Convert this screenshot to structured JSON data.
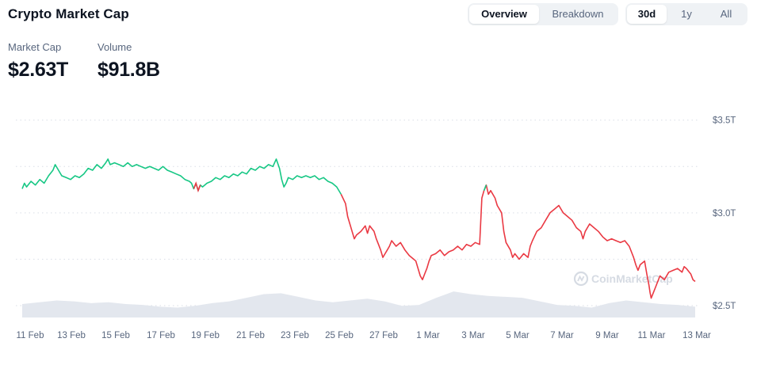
{
  "header": {
    "title": "Crypto Market Cap"
  },
  "view_toggle": {
    "options": [
      "Overview",
      "Breakdown"
    ],
    "active": 0
  },
  "range_toggle": {
    "options": [
      "30d",
      "1y",
      "All"
    ],
    "active": 0
  },
  "stats": {
    "market_cap": {
      "label": "Market Cap",
      "value": "$2.63T"
    },
    "volume": {
      "label": "Volume",
      "value": "$91.8B"
    }
  },
  "watermark": "CoinMarketCap",
  "colors": {
    "up": "#16c784",
    "down": "#ea3943",
    "volume": "#e3e7ee",
    "grid": "#d9dee6"
  },
  "chart_data": {
    "type": "line",
    "x_ticks": [
      "11 Feb",
      "13 Feb",
      "15 Feb",
      "17 Feb",
      "19 Feb",
      "21 Feb",
      "23 Feb",
      "25 Feb",
      "27 Feb",
      "1 Mar",
      "3 Mar",
      "5 Mar",
      "7 Mar",
      "9 Mar",
      "11 Mar",
      "13 Mar"
    ],
    "y_ticks": [
      "$3.5T",
      "$3.0T",
      "$2.5T"
    ],
    "y_tick_values": [
      3.5,
      3.0,
      2.5
    ],
    "ylim": [
      2.44,
      3.58
    ],
    "x_range_days": [
      0,
      30.6
    ],
    "unit": "trillion USD",
    "series": [
      {
        "values": [
          [
            0.0,
            3.13
          ],
          [
            0.1,
            3.16
          ],
          [
            0.2,
            3.14
          ],
          [
            0.4,
            3.17
          ],
          [
            0.6,
            3.15
          ],
          [
            0.8,
            3.18
          ],
          [
            1.0,
            3.16
          ],
          [
            1.2,
            3.2
          ],
          [
            1.4,
            3.23
          ],
          [
            1.5,
            3.26
          ],
          [
            1.6,
            3.24
          ],
          [
            1.8,
            3.2
          ],
          [
            2.0,
            3.19
          ],
          [
            2.2,
            3.18
          ],
          [
            2.4,
            3.2
          ],
          [
            2.6,
            3.19
          ],
          [
            2.8,
            3.21
          ],
          [
            3.0,
            3.24
          ],
          [
            3.2,
            3.23
          ],
          [
            3.4,
            3.26
          ],
          [
            3.6,
            3.24
          ],
          [
            3.8,
            3.27
          ],
          [
            3.9,
            3.29
          ],
          [
            4.0,
            3.26
          ],
          [
            4.2,
            3.27
          ],
          [
            4.4,
            3.26
          ],
          [
            4.6,
            3.25
          ],
          [
            4.8,
            3.27
          ],
          [
            5.0,
            3.25
          ],
          [
            5.2,
            3.26
          ],
          [
            5.4,
            3.25
          ],
          [
            5.6,
            3.24
          ],
          [
            5.8,
            3.25
          ],
          [
            6.0,
            3.24
          ],
          [
            6.2,
            3.23
          ],
          [
            6.4,
            3.25
          ],
          [
            6.6,
            3.23
          ],
          [
            6.8,
            3.22
          ],
          [
            7.0,
            3.21
          ],
          [
            7.2,
            3.2
          ],
          [
            7.4,
            3.18
          ],
          [
            7.6,
            3.17
          ],
          [
            7.7,
            3.16
          ],
          [
            7.8,
            3.13
          ],
          [
            7.9,
            3.16
          ],
          [
            8.0,
            3.12
          ],
          [
            8.1,
            3.15
          ],
          [
            8.2,
            3.14
          ],
          [
            8.4,
            3.16
          ],
          [
            8.6,
            3.17
          ],
          [
            8.8,
            3.19
          ],
          [
            9.0,
            3.18
          ],
          [
            9.2,
            3.2
          ],
          [
            9.4,
            3.19
          ],
          [
            9.6,
            3.21
          ],
          [
            9.8,
            3.2
          ],
          [
            10.0,
            3.22
          ],
          [
            10.2,
            3.21
          ],
          [
            10.4,
            3.24
          ],
          [
            10.6,
            3.23
          ],
          [
            10.8,
            3.25
          ],
          [
            11.0,
            3.24
          ],
          [
            11.2,
            3.26
          ],
          [
            11.4,
            3.25
          ],
          [
            11.55,
            3.29
          ],
          [
            11.7,
            3.24
          ],
          [
            11.8,
            3.18
          ],
          [
            11.9,
            3.14
          ],
          [
            12.0,
            3.16
          ],
          [
            12.1,
            3.19
          ],
          [
            12.3,
            3.18
          ],
          [
            12.5,
            3.2
          ],
          [
            12.7,
            3.19
          ],
          [
            12.9,
            3.2
          ],
          [
            13.1,
            3.19
          ],
          [
            13.3,
            3.2
          ],
          [
            13.5,
            3.18
          ],
          [
            13.7,
            3.19
          ],
          [
            13.9,
            3.17
          ],
          [
            14.1,
            3.16
          ],
          [
            14.3,
            3.14
          ],
          [
            14.5,
            3.1
          ],
          [
            14.7,
            3.05
          ],
          [
            14.8,
            2.98
          ],
          [
            14.9,
            2.94
          ],
          [
            15.0,
            2.9
          ],
          [
            15.1,
            2.86
          ],
          [
            15.2,
            2.88
          ],
          [
            15.4,
            2.9
          ],
          [
            15.6,
            2.93
          ],
          [
            15.7,
            2.89
          ],
          [
            15.8,
            2.93
          ],
          [
            16.0,
            2.9
          ],
          [
            16.1,
            2.86
          ],
          [
            16.2,
            2.83
          ],
          [
            16.3,
            2.8
          ],
          [
            16.4,
            2.76
          ],
          [
            16.5,
            2.78
          ],
          [
            16.6,
            2.8
          ],
          [
            16.7,
            2.82
          ],
          [
            16.8,
            2.85
          ],
          [
            17.0,
            2.82
          ],
          [
            17.2,
            2.84
          ],
          [
            17.4,
            2.8
          ],
          [
            17.6,
            2.77
          ],
          [
            17.8,
            2.75
          ],
          [
            17.9,
            2.74
          ],
          [
            18.0,
            2.7
          ],
          [
            18.1,
            2.66
          ],
          [
            18.2,
            2.64
          ],
          [
            18.3,
            2.67
          ],
          [
            18.4,
            2.7
          ],
          [
            18.5,
            2.74
          ],
          [
            18.6,
            2.77
          ],
          [
            18.8,
            2.78
          ],
          [
            19.0,
            2.8
          ],
          [
            19.2,
            2.77
          ],
          [
            19.4,
            2.79
          ],
          [
            19.6,
            2.8
          ],
          [
            19.8,
            2.82
          ],
          [
            20.0,
            2.8
          ],
          [
            20.2,
            2.83
          ],
          [
            20.4,
            2.82
          ],
          [
            20.6,
            2.84
          ],
          [
            20.8,
            2.83
          ],
          [
            20.9,
            3.08
          ],
          [
            21.0,
            3.12
          ],
          [
            21.1,
            3.15
          ],
          [
            21.2,
            3.1
          ],
          [
            21.3,
            3.12
          ],
          [
            21.5,
            3.08
          ],
          [
            21.6,
            3.04
          ],
          [
            21.8,
            3.0
          ],
          [
            21.9,
            2.9
          ],
          [
            22.0,
            2.84
          ],
          [
            22.2,
            2.8
          ],
          [
            22.3,
            2.76
          ],
          [
            22.4,
            2.78
          ],
          [
            22.6,
            2.75
          ],
          [
            22.8,
            2.78
          ],
          [
            23.0,
            2.76
          ],
          [
            23.1,
            2.82
          ],
          [
            23.2,
            2.85
          ],
          [
            23.4,
            2.9
          ],
          [
            23.6,
            2.92
          ],
          [
            23.8,
            2.96
          ],
          [
            24.0,
            3.0
          ],
          [
            24.2,
            3.02
          ],
          [
            24.4,
            3.04
          ],
          [
            24.6,
            3.0
          ],
          [
            24.8,
            2.98
          ],
          [
            25.0,
            2.96
          ],
          [
            25.2,
            2.92
          ],
          [
            25.4,
            2.9
          ],
          [
            25.5,
            2.86
          ],
          [
            25.6,
            2.9
          ],
          [
            25.8,
            2.94
          ],
          [
            26.0,
            2.92
          ],
          [
            26.2,
            2.9
          ],
          [
            26.4,
            2.87
          ],
          [
            26.6,
            2.85
          ],
          [
            26.8,
            2.86
          ],
          [
            27.0,
            2.85
          ],
          [
            27.2,
            2.84
          ],
          [
            27.4,
            2.85
          ],
          [
            27.6,
            2.82
          ],
          [
            27.8,
            2.76
          ],
          [
            27.9,
            2.72
          ],
          [
            28.0,
            2.69
          ],
          [
            28.1,
            2.72
          ],
          [
            28.3,
            2.74
          ],
          [
            28.4,
            2.67
          ],
          [
            28.5,
            2.61
          ],
          [
            28.55,
            2.57
          ],
          [
            28.6,
            2.54
          ],
          [
            28.7,
            2.57
          ],
          [
            28.8,
            2.6
          ],
          [
            28.9,
            2.63
          ],
          [
            29.0,
            2.66
          ],
          [
            29.2,
            2.64
          ],
          [
            29.4,
            2.68
          ],
          [
            29.6,
            2.69
          ],
          [
            29.8,
            2.7
          ],
          [
            30.0,
            2.68
          ],
          [
            30.1,
            2.71
          ],
          [
            30.2,
            2.7
          ],
          [
            30.4,
            2.67
          ],
          [
            30.5,
            2.64
          ],
          [
            30.6,
            2.63
          ]
        ]
      }
    ],
    "volume_series": [
      1.5,
      1.7,
      1.9,
      1.8,
      1.6,
      1.7,
      1.5,
      1.4,
      1.2,
      1.1,
      1.3,
      1.6,
      1.8,
      2.2,
      2.6,
      2.7,
      2.3,
      1.9,
      1.7,
      1.9,
      2.1,
      1.8,
      1.3,
      1.4,
      2.2,
      2.9,
      2.6,
      2.4,
      2.3,
      2.2,
      1.8,
      1.4,
      1.3,
      1.1,
      1.6,
      1.9,
      1.7,
      1.5,
      1.4,
      1.2
    ]
  }
}
